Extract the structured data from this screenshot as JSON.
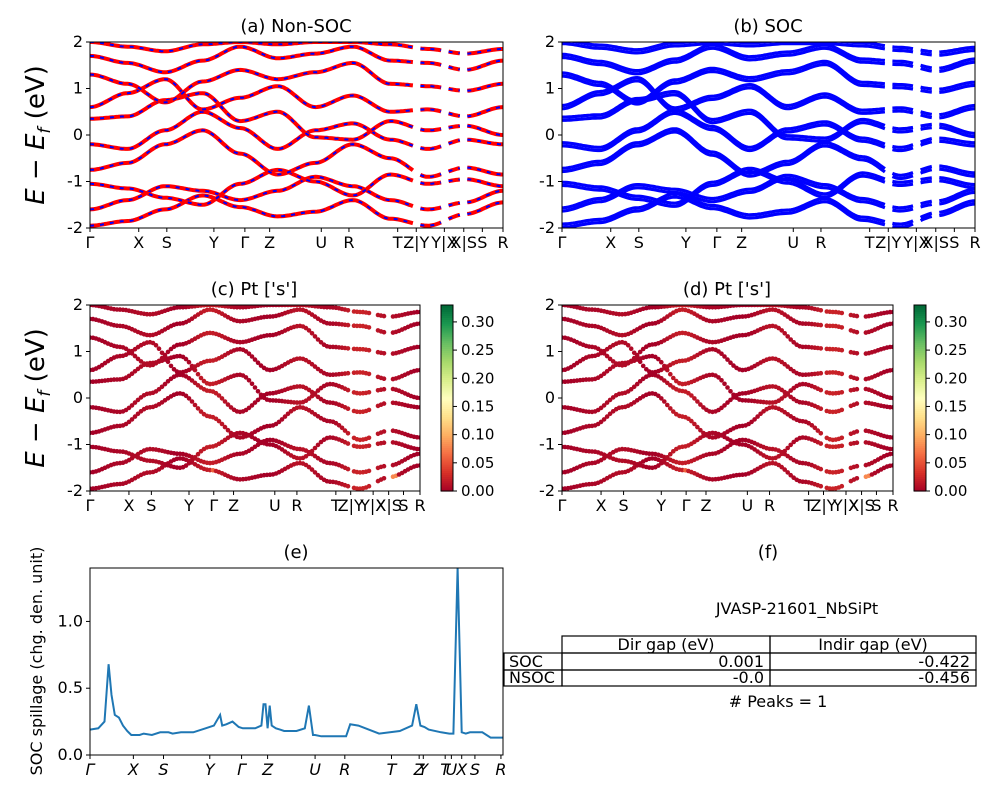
{
  "figure_id": "JVASP-21601_NbSiPt",
  "colors": {
    "nonsoc_band": "#ff0000",
    "nonsoc_band_dash": "#0000ff",
    "soc_band": "#0000ff",
    "spillage_line": "#1f77b4",
    "colormap": [
      "#a50026",
      "#d73027",
      "#f46d43",
      "#fdae61",
      "#fee08b",
      "#ffffbf",
      "#d9ef8b",
      "#a6d96a",
      "#66bd63",
      "#1a9850",
      "#006837"
    ]
  },
  "bands": {
    "x_range": [
      0,
      1
    ],
    "ylim": [
      -2,
      2
    ],
    "yticks": [
      -2,
      -1,
      0,
      1,
      2
    ],
    "kpath_labels": [
      "Γ",
      "X",
      "S",
      "Y",
      "Γ",
      "Z",
      "U",
      "R",
      "T",
      "Z|Y",
      "Y|X",
      "X|S",
      "S",
      "R"
    ],
    "kpath_pos": [
      0.0,
      0.118,
      0.186,
      0.3,
      0.375,
      0.435,
      0.56,
      0.627,
      0.745,
      0.79,
      0.858,
      0.905,
      0.95,
      1.0
    ],
    "bands": [
      [
        -1.95,
        -1.85,
        -1.6,
        -1.3,
        -1.55,
        -1.75,
        -1.65,
        -1.4,
        -1.8,
        -1.95,
        -1.7,
        -1.45
      ],
      [
        -1.6,
        -1.4,
        -1.1,
        -1.2,
        -1.4,
        -1.2,
        -0.9,
        -1.1,
        -1.4,
        -1.6,
        -1.45,
        -1.2
      ],
      [
        -1.05,
        -1.15,
        -1.35,
        -1.5,
        -1.05,
        -0.75,
        -1.0,
        -1.3,
        -0.85,
        -1.05,
        -0.95,
        -1.1
      ],
      [
        -0.75,
        -0.6,
        -0.2,
        0.1,
        -0.4,
        -0.85,
        -0.6,
        -0.2,
        -0.5,
        -0.9,
        -0.7,
        -0.85
      ],
      [
        -0.2,
        -0.3,
        0.1,
        0.5,
        0.15,
        -0.3,
        0.1,
        0.25,
        -0.1,
        -0.3,
        -0.1,
        -0.2
      ],
      [
        0.35,
        0.4,
        0.75,
        0.9,
        0.3,
        0.5,
        -0.05,
        -0.1,
        0.3,
        0.1,
        0.2,
        0.0
      ],
      [
        0.6,
        0.9,
        1.2,
        0.55,
        0.8,
        1.05,
        0.6,
        0.85,
        0.5,
        0.55,
        0.4,
        0.6
      ],
      [
        1.3,
        1.1,
        0.7,
        1.15,
        1.4,
        1.2,
        1.35,
        1.55,
        1.1,
        1.05,
        0.95,
        1.1
      ],
      [
        1.7,
        1.55,
        1.35,
        1.6,
        1.9,
        1.65,
        1.75,
        1.9,
        1.6,
        1.55,
        1.4,
        1.6
      ],
      [
        2.0,
        1.9,
        1.8,
        1.95,
        2.0,
        1.95,
        2.0,
        2.0,
        1.95,
        1.85,
        1.75,
        1.85
      ]
    ],
    "projection_values": [
      0.0,
      0.01,
      0.02,
      0.0,
      0.05,
      0.01,
      0.0,
      0.03,
      0.01,
      0.06,
      0.02,
      0.0
    ],
    "projection_hotspots": [
      [
        0.325,
        -1.9,
        0.07
      ],
      [
        0.36,
        -1.85,
        0.06
      ],
      [
        0.93,
        -1.95,
        0.08
      ]
    ]
  },
  "panels": {
    "a": {
      "title": "(a) Non-SOC",
      "ylabel": "E − E_f (eV)"
    },
    "b": {
      "title": "(b) SOC"
    },
    "c": {
      "title": "(c)  Pt ['s']",
      "ylabel": "E − E_f (eV)"
    },
    "d": {
      "title": "(d) Pt ['s']"
    },
    "e": {
      "title": "(e)",
      "ylabel": "SOC spillage (chg. den. unit)"
    },
    "f": {
      "title": "(f)",
      "material": "JVASP-21601_NbSiPt",
      "peaks": "# Peaks = 1"
    }
  },
  "colorbar": {
    "vmin": 0.0,
    "vmax": 0.33,
    "ticks": [
      "0.00",
      "0.05",
      "0.10",
      "0.15",
      "0.20",
      "0.25",
      "0.30"
    ],
    "tick_values": [
      0.0,
      0.05,
      0.1,
      0.15,
      0.2,
      0.25,
      0.3
    ]
  },
  "chart_data": {
    "type": "line",
    "title": "(e)",
    "xlabel": "",
    "ylabel": "SOC spillage (chg. den. unit)",
    "ylim": [
      0,
      1.4
    ],
    "yticks": [
      "0.0",
      "0.5",
      "1.0"
    ],
    "ytick_values": [
      0.0,
      0.5,
      1.0
    ],
    "xtick_labels": [
      "Γ",
      "X",
      "S",
      "Y",
      "Γ",
      "Z",
      "U",
      "R",
      "T",
      "Z",
      "Y",
      "T",
      "U",
      "X",
      "S",
      "R"
    ],
    "xtick_pos": [
      0.0,
      0.105,
      0.178,
      0.29,
      0.367,
      0.43,
      0.545,
      0.617,
      0.73,
      0.797,
      0.807,
      0.86,
      0.875,
      0.9,
      0.932,
      0.995
    ],
    "x": [
      0.0,
      0.02,
      0.035,
      0.045,
      0.052,
      0.06,
      0.07,
      0.08,
      0.09,
      0.1,
      0.12,
      0.13,
      0.15,
      0.17,
      0.19,
      0.2,
      0.22,
      0.25,
      0.28,
      0.3,
      0.315,
      0.32,
      0.33,
      0.345,
      0.36,
      0.37,
      0.4,
      0.415,
      0.42,
      0.425,
      0.43,
      0.435,
      0.44,
      0.45,
      0.46,
      0.47,
      0.5,
      0.52,
      0.53,
      0.54,
      0.545,
      0.56,
      0.6,
      0.62,
      0.63,
      0.65,
      0.7,
      0.75,
      0.78,
      0.79,
      0.8,
      0.81,
      0.82,
      0.85,
      0.87,
      0.88,
      0.89,
      0.9,
      0.91,
      0.92,
      0.95,
      0.97,
      1.0
    ],
    "y": [
      0.19,
      0.2,
      0.25,
      0.68,
      0.45,
      0.3,
      0.28,
      0.22,
      0.18,
      0.15,
      0.15,
      0.16,
      0.15,
      0.17,
      0.17,
      0.16,
      0.17,
      0.17,
      0.2,
      0.22,
      0.3,
      0.22,
      0.23,
      0.25,
      0.21,
      0.2,
      0.2,
      0.22,
      0.38,
      0.38,
      0.2,
      0.37,
      0.22,
      0.2,
      0.19,
      0.18,
      0.18,
      0.2,
      0.37,
      0.15,
      0.15,
      0.14,
      0.14,
      0.14,
      0.23,
      0.22,
      0.16,
      0.18,
      0.22,
      0.38,
      0.22,
      0.21,
      0.19,
      0.17,
      0.16,
      0.16,
      1.4,
      0.17,
      0.16,
      0.17,
      0.17,
      0.13,
      0.13
    ]
  },
  "table": {
    "headers": [
      "",
      "Dir gap (eV)",
      "Indir gap (eV)"
    ],
    "rows": [
      [
        "SOC",
        "0.001",
        "-0.422"
      ],
      [
        "NSOC",
        "-0.0",
        "-0.456"
      ]
    ]
  }
}
